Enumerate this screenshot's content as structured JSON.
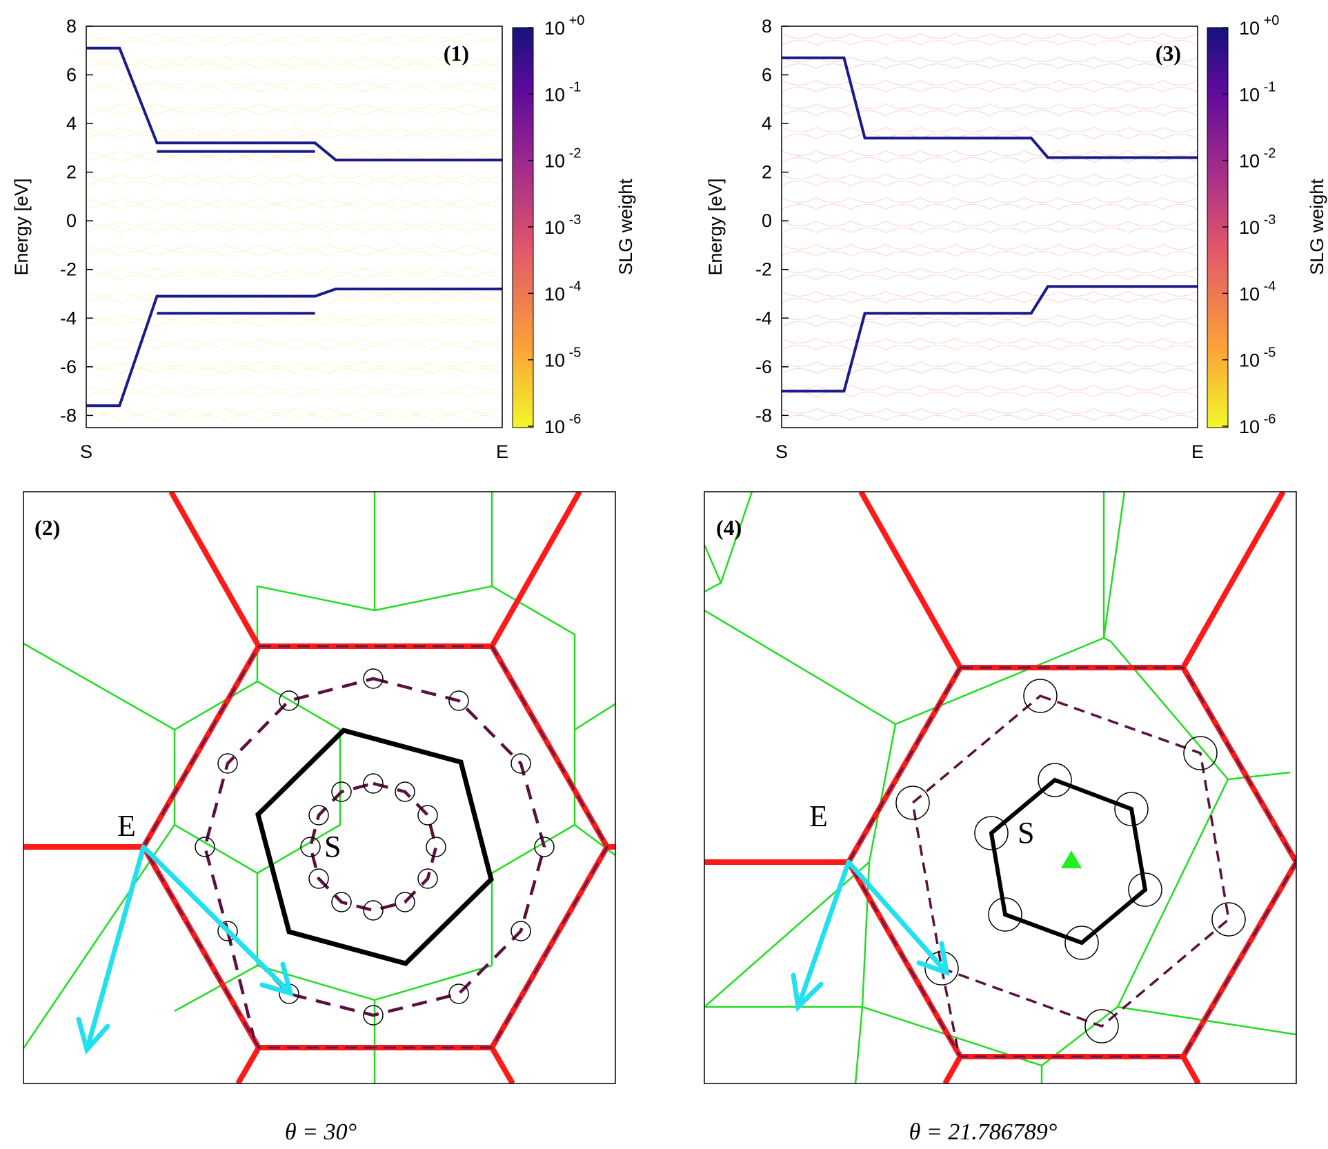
{
  "chart_data": [
    {
      "type": "line",
      "panel_label": "(1)",
      "xlabel": "",
      "ylabel": "Energy [eV]",
      "xticks": [
        "S",
        "E"
      ],
      "ylim": [
        -8.5,
        8
      ],
      "yticks": [
        8,
        6,
        4,
        2,
        0,
        -2,
        -4,
        -6,
        -8
      ],
      "colorbar": {
        "label": "SLG weight",
        "ticks": [
          "10 +0",
          "10 -1",
          "10 -2",
          "10 -3",
          "10 -4",
          "10 -5",
          "10 -6"
        ],
        "base": "10",
        "exponents": [
          "+0",
          "-1",
          "-2",
          "-3",
          "-4",
          "-5",
          "-6"
        ]
      },
      "series": [
        {
          "name": "upper band",
          "x": [
            0,
            0.08,
            0.17,
            0.55,
            0.6,
            1.0
          ],
          "values": [
            7.1,
            7.1,
            3.2,
            3.2,
            2.5,
            2.5
          ]
        },
        {
          "name": "upper band 2",
          "x": [
            0.17,
            0.55
          ],
          "values": [
            2.85,
            2.85
          ]
        },
        {
          "name": "lower band",
          "x": [
            0,
            0.08,
            0.17,
            0.55,
            0.6,
            1.0
          ],
          "values": [
            -7.6,
            -7.6,
            -3.1,
            -3.1,
            -2.8,
            -2.8
          ]
        },
        {
          "name": "lower band 2",
          "x": [
            0.17,
            0.55
          ],
          "values": [
            -3.8,
            -3.8
          ]
        }
      ]
    },
    {
      "type": "line",
      "panel_label": "(3)",
      "xlabel": "",
      "ylabel": "Energy [eV]",
      "xticks": [
        "S",
        "E"
      ],
      "ylim": [
        -8.5,
        8
      ],
      "yticks": [
        8,
        6,
        4,
        2,
        0,
        -2,
        -4,
        -6,
        -8
      ],
      "colorbar": {
        "label": "SLG weight",
        "ticks": [
          "10 +0",
          "10 -1",
          "10 -2",
          "10 -3",
          "10 -4",
          "10 -5",
          "10 -6"
        ],
        "base": "10",
        "exponents": [
          "+0",
          "-1",
          "-2",
          "-3",
          "-4",
          "-5",
          "-6"
        ]
      },
      "series": [
        {
          "name": "upper band",
          "x": [
            0,
            0.15,
            0.2,
            0.6,
            0.64,
            1.0
          ],
          "values": [
            6.7,
            6.7,
            3.4,
            3.4,
            2.6,
            2.6
          ]
        },
        {
          "name": "lower band",
          "x": [
            0,
            0.15,
            0.2,
            0.6,
            0.64,
            1.0
          ],
          "values": [
            -7.0,
            -7.0,
            -3.8,
            -3.8,
            -2.7,
            -2.7
          ]
        }
      ]
    }
  ],
  "diagrams": [
    {
      "panel_label": "(2)",
      "label_S": "S",
      "label_E": "E",
      "angle_caption": "θ = 30°"
    },
    {
      "panel_label": "(4)",
      "label_S": "S",
      "label_E": "E",
      "angle_caption": "θ = 21.786789°"
    }
  ]
}
